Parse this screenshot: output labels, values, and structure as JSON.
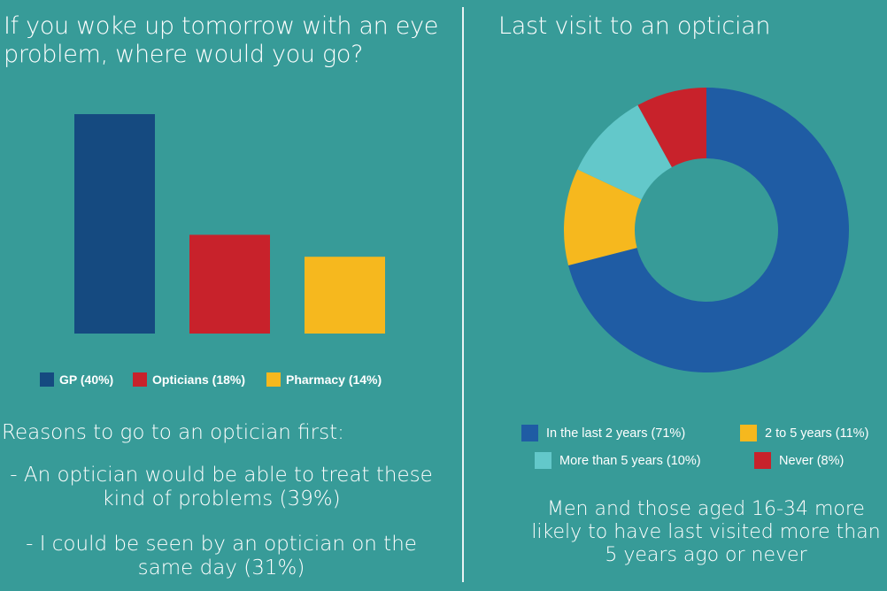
{
  "left_panel": {
    "title": "If you woke up tomorrow with an eye problem, where would you go?",
    "reasons_heading": "Reasons to go to an optician first:",
    "reasons": [
      "- An optician would be able to treat these kind of problems (39%)",
      "- I could be seen by an optician on the same day (31%)"
    ]
  },
  "right_panel": {
    "title": "Last visit to an optician",
    "note": "Men and those aged 16-34 more likely to have last visited more than 5 years ago or never"
  },
  "chart_data": [
    {
      "type": "bar",
      "title": "If you woke up tomorrow with an eye problem, where would you go?",
      "categories": [
        "GP",
        "Opticians",
        "Pharmacy"
      ],
      "values": [
        40,
        18,
        14
      ],
      "unit": "%",
      "legend": [
        "GP (40%)",
        "Opticians (18%)",
        "Pharmacy (14%)"
      ],
      "colors": [
        "#154a80",
        "#c8222b",
        "#f6b81e"
      ],
      "legend_placement": "bottom",
      "grid": false,
      "axes_visible": false
    },
    {
      "type": "pie",
      "variant": "donut",
      "title": "Last visit to an optician",
      "categories": [
        "In the last 2 years",
        "2 to 5 years",
        "More than 5 years",
        "Never"
      ],
      "values": [
        71,
        11,
        10,
        8
      ],
      "unit": "%",
      "legend": [
        "In the last 2 years (71%)",
        "2 to 5 years (11%)",
        "More than 5 years (10%)",
        "Never (8%)"
      ],
      "colors": [
        "#1f5ca4",
        "#f6b81e",
        "#63c8ca",
        "#c8222b"
      ],
      "legend_placement": "bottom"
    }
  ]
}
